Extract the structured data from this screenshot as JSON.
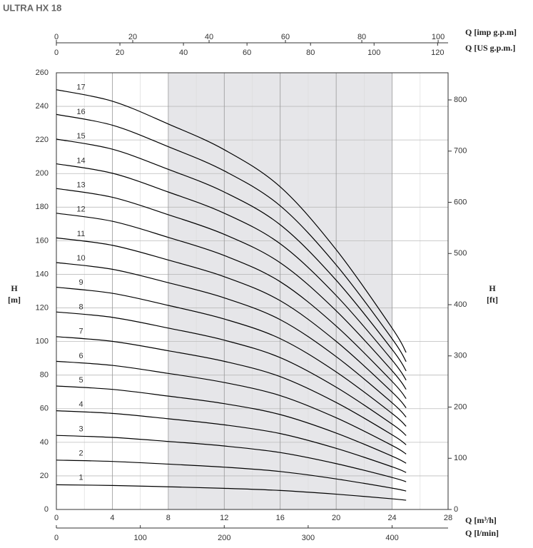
{
  "chart_data": {
    "type": "line",
    "title": "ULTRA HX 18",
    "x_label": "Q [m³/h]",
    "x2_label": "Q [l/min]",
    "top_label": "Q [imp g.p.m]",
    "top2_label": "Q [US g.p.m.]",
    "y_label": "H\n[m]",
    "y2_label": "H\n[ft]",
    "x": [
      0,
      4,
      8,
      12,
      16,
      20,
      24,
      25
    ],
    "xlim": [
      0,
      28
    ],
    "xticks": [
      0,
      4,
      8,
      12,
      16,
      20,
      24,
      28
    ],
    "x2lim": [
      0,
      466.7
    ],
    "x2ticks": [
      0,
      100,
      200,
      300,
      400
    ],
    "toplim": [
      0,
      102.6
    ],
    "topticks": [
      0,
      20,
      40,
      60,
      80,
      100
    ],
    "top2lim": [
      0,
      123.3
    ],
    "top2ticks": [
      0,
      20,
      40,
      60,
      80,
      100,
      120
    ],
    "ylim": [
      0,
      260
    ],
    "yticks": [
      0,
      20,
      40,
      60,
      80,
      100,
      120,
      140,
      160,
      180,
      200,
      220,
      240,
      260
    ],
    "y2lim": [
      0,
      853
    ],
    "y2ticks": [
      0,
      100,
      200,
      300,
      400,
      500,
      600,
      700,
      800
    ],
    "grid": true,
    "shaded_range": [
      8,
      24
    ],
    "series": [
      {
        "name": "1",
        "color": "#000000",
        "values": [
          14.7,
          14.3,
          13.5,
          12.6,
          11.3,
          9.1,
          6.35,
          5.5
        ]
      },
      {
        "name": "2",
        "color": "#000000",
        "values": [
          29.4,
          28.6,
          27,
          25.2,
          22.6,
          18.2,
          12.7,
          11
        ]
      },
      {
        "name": "3",
        "color": "#000000",
        "values": [
          44.1,
          42.9,
          40.5,
          37.8,
          33.9,
          27.3,
          19.05,
          16.5
        ]
      },
      {
        "name": "4",
        "color": "#000000",
        "values": [
          58.8,
          57.2,
          54,
          50.4,
          45.2,
          36.4,
          25.4,
          22
        ]
      },
      {
        "name": "5",
        "color": "#000000",
        "values": [
          73.5,
          71.5,
          67.5,
          63,
          56.5,
          45.5,
          31.75,
          27.5
        ]
      },
      {
        "name": "6",
        "color": "#000000",
        "values": [
          88.2,
          85.8,
          81,
          75.6,
          67.8,
          54.6,
          38.1,
          33
        ]
      },
      {
        "name": "7",
        "color": "#000000",
        "values": [
          102.9,
          100.1,
          94.5,
          88.2,
          79.1,
          63.7,
          44.45,
          38.5
        ]
      },
      {
        "name": "8",
        "color": "#000000",
        "values": [
          117.6,
          114.4,
          108,
          100.8,
          90.4,
          72.8,
          50.8,
          44
        ]
      },
      {
        "name": "9",
        "color": "#000000",
        "values": [
          132.3,
          128.7,
          121.5,
          113.4,
          101.7,
          81.9,
          57.15,
          49.5
        ]
      },
      {
        "name": "10",
        "color": "#000000",
        "values": [
          147,
          143,
          135,
          126,
          113,
          91,
          63.5,
          55
        ]
      },
      {
        "name": "11",
        "color": "#000000",
        "values": [
          161.7,
          157.3,
          148.5,
          138.6,
          124.3,
          100.1,
          69.85,
          60.5
        ]
      },
      {
        "name": "12",
        "color": "#000000",
        "values": [
          176.4,
          171.6,
          162,
          151.2,
          135.6,
          109.2,
          76.2,
          66
        ]
      },
      {
        "name": "13",
        "color": "#000000",
        "values": [
          191.1,
          185.9,
          175.5,
          163.8,
          146.9,
          118.3,
          82.55,
          71.5
        ]
      },
      {
        "name": "14",
        "color": "#000000",
        "values": [
          205.8,
          200.2,
          189,
          176.4,
          158.2,
          127.4,
          88.9,
          77
        ]
      },
      {
        "name": "15",
        "color": "#000000",
        "values": [
          220.5,
          214.5,
          202.5,
          189,
          169.5,
          136.5,
          95.25,
          82.5
        ]
      },
      {
        "name": "16",
        "color": "#000000",
        "values": [
          235.2,
          228.8,
          216,
          201.6,
          180.8,
          145.6,
          101.6,
          88
        ]
      },
      {
        "name": "17",
        "color": "#000000",
        "values": [
          249.9,
          243.1,
          229.5,
          214.2,
          192.1,
          154.7,
          107.95,
          93.5
        ]
      }
    ]
  }
}
